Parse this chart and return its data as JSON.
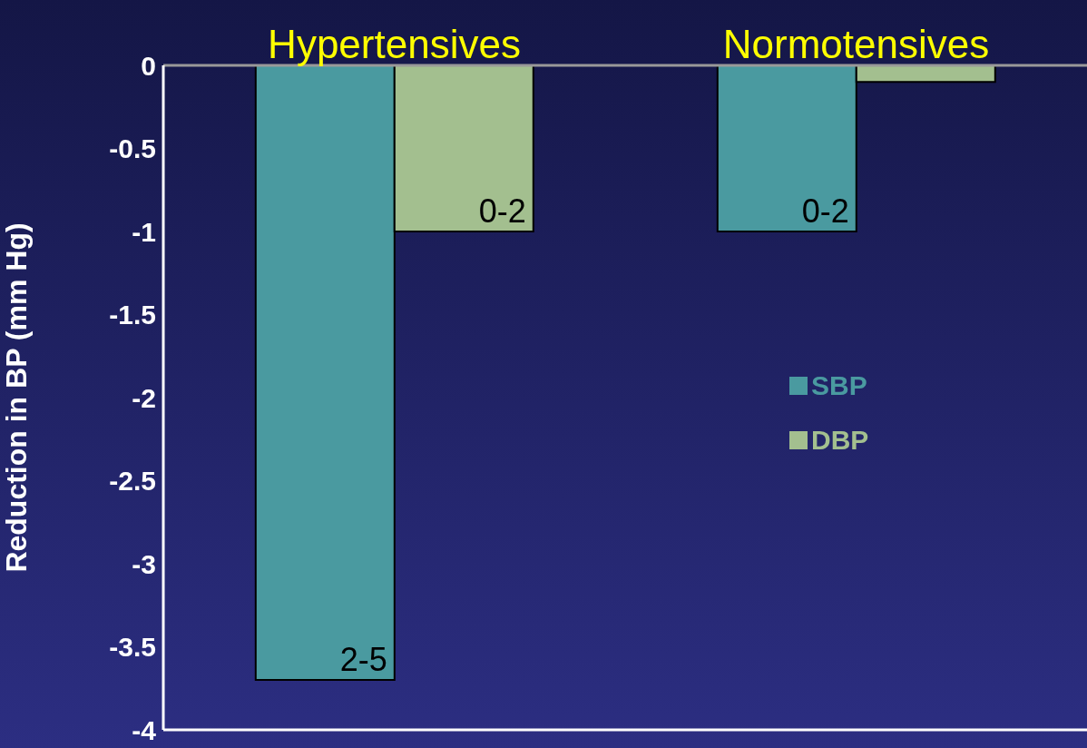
{
  "chart_data": {
    "type": "bar",
    "categories": [
      "Hypertensives",
      "Normotensives"
    ],
    "ylabel": "Reduction in BP (mm Hg)",
    "series": [
      {
        "name": "SBP",
        "color": "#4a9aa0",
        "values": [
          -3.7,
          -1.0
        ],
        "value_labels": [
          "2-5",
          "0-2"
        ]
      },
      {
        "name": "DBP",
        "color": "#a3bf8f",
        "values": [
          -1.0,
          -0.1
        ],
        "value_labels": [
          "0-2",
          null
        ]
      }
    ],
    "ylim": [
      -4,
      0
    ],
    "yticks": [
      0,
      -0.5,
      -1,
      -1.5,
      -2,
      -2.5,
      -3,
      -3.5,
      -4
    ],
    "grid": false,
    "legend": "right"
  }
}
